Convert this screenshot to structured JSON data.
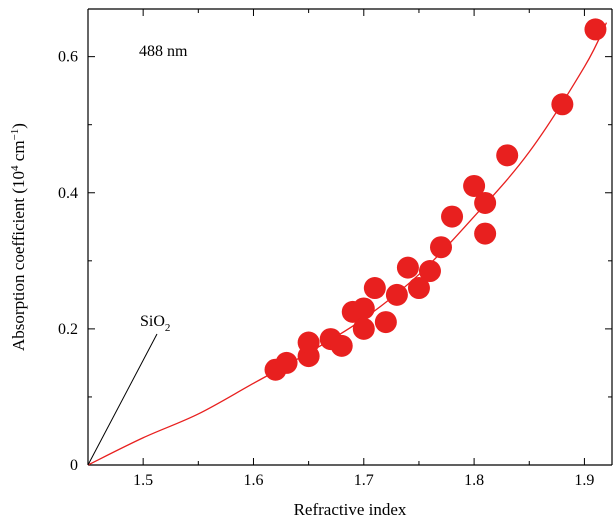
{
  "chart_data": {
    "type": "scatter",
    "xlabel": "Refractive index",
    "ylabel": {
      "main": "Absorption coefficient (10",
      "exp1": "4",
      "mid": " cm",
      "exp2": "−1",
      "end": ")"
    },
    "xlim": [
      1.45,
      1.925
    ],
    "ylim": [
      0,
      0.67
    ],
    "xticks": [
      1.5,
      1.6,
      1.7,
      1.8,
      1.9
    ],
    "xtick_labels": [
      "1.5",
      "1.6",
      "1.7",
      "1.8",
      "1.9"
    ],
    "yticks": [
      0,
      0.2,
      0.4,
      0.6
    ],
    "ytick_labels": [
      "0",
      "0.2",
      "0.4",
      "0.6"
    ],
    "grid": false,
    "annotations": {
      "wavelength": "488 nm",
      "sio2_main": "SiO",
      "sio2_sub": "2"
    },
    "series": [
      {
        "marker": "circle",
        "color": "#e8201f",
        "points": [
          {
            "x": 1.62,
            "y": 0.14
          },
          {
            "x": 1.63,
            "y": 0.15
          },
          {
            "x": 1.65,
            "y": 0.16
          },
          {
            "x": 1.65,
            "y": 0.18
          },
          {
            "x": 1.67,
            "y": 0.185
          },
          {
            "x": 1.68,
            "y": 0.175
          },
          {
            "x": 1.69,
            "y": 0.225
          },
          {
            "x": 1.7,
            "y": 0.2
          },
          {
            "x": 1.7,
            "y": 0.23
          },
          {
            "x": 1.71,
            "y": 0.26
          },
          {
            "x": 1.72,
            "y": 0.21
          },
          {
            "x": 1.73,
            "y": 0.25
          },
          {
            "x": 1.74,
            "y": 0.29
          },
          {
            "x": 1.75,
            "y": 0.26
          },
          {
            "x": 1.76,
            "y": 0.285
          },
          {
            "x": 1.77,
            "y": 0.32
          },
          {
            "x": 1.78,
            "y": 0.365
          },
          {
            "x": 1.8,
            "y": 0.41
          },
          {
            "x": 1.81,
            "y": 0.385
          },
          {
            "x": 1.81,
            "y": 0.34
          },
          {
            "x": 1.83,
            "y": 0.455
          },
          {
            "x": 1.88,
            "y": 0.53
          },
          {
            "x": 1.91,
            "y": 0.64
          }
        ]
      }
    ],
    "fit_curve": {
      "color": "#e8201f",
      "points": [
        {
          "x": 1.45,
          "y": 0.0
        },
        {
          "x": 1.5,
          "y": 0.04
        },
        {
          "x": 1.55,
          "y": 0.075
        },
        {
          "x": 1.6,
          "y": 0.12
        },
        {
          "x": 1.65,
          "y": 0.165
        },
        {
          "x": 1.7,
          "y": 0.215
        },
        {
          "x": 1.75,
          "y": 0.28
        },
        {
          "x": 1.8,
          "y": 0.365
        },
        {
          "x": 1.85,
          "y": 0.46
        },
        {
          "x": 1.9,
          "y": 0.585
        },
        {
          "x": 1.92,
          "y": 0.65
        }
      ]
    },
    "sio2_leader": {
      "x": 1.45,
      "y": 0.0
    }
  }
}
